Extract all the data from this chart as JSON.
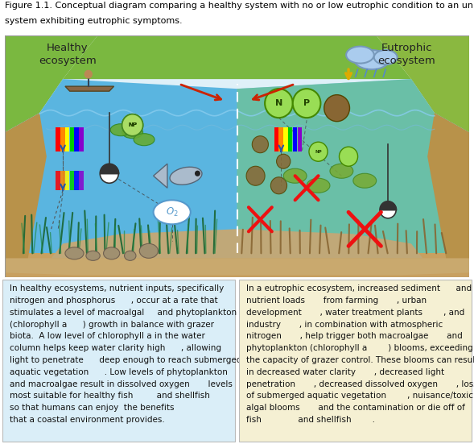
{
  "title_line1": "Figure 1.1. Conceptual diagram comparing a healthy system with no or low eutrophic condition to an unhealthy",
  "title_line2": "system exhibiting eutrophic symptoms.",
  "title_fontsize": 8.0,
  "left_label": "Healthy\necosystem",
  "right_label": "Eutrophic\necosystem",
  "label_fontsize": 9.5,
  "outer_bg": "#ffffff",
  "sky_color": "#e8f4fb",
  "land_color_left": "#7ab840",
  "land_color_right": "#8ab84a",
  "water_color": "#5ab5e0",
  "water_color_right": "#7ec87a",
  "sandy_bottom": "#c9a96e",
  "shore_brown": "#b8924a",
  "text_left_bg": "#daeef8",
  "text_right_bg": "#f5f0d3",
  "text_border": "#bbbbbb",
  "divider_color": "#ffffff",
  "fig_width": 5.89,
  "fig_height": 5.51,
  "dpi": 100,
  "left_text_lines": [
    "In healthy ecosystems, nutrient inputs, specifically",
    "nitrogen and phosphorus      , occur at a rate that",
    "stimulates a level of macroalgal     and phytoplankton",
    "(chlorophyll a      ) growth in balance with grazer",
    "biota.  A low level of chlorophyll a in the water",
    "column helps keep water clarity high      , allowing",
    "light to penetrate      deep enough to reach submerged",
    "aquatic vegetation      . Low levels of phytoplankton",
    "and macroalgae result in dissolved oxygen       levels",
    "most suitable for healthy fish         and shellfish",
    "so that humans can enjoy  the benefits",
    "that a coastal environment provides."
  ],
  "right_text_lines": [
    "In a eutrophic ecosystem, increased sediment      and",
    "nutrient loads       from farming       , urban",
    "development       , water treatment plants        , and",
    "industry       , in combination with atmospheric",
    "nitrogen       , help trigger both macroalgae       and",
    "phytoplankton (chlorophyll a        ) blooms, exceeding",
    "the capacity of grazer control. These blooms can result",
    "in decreased water clarity       , decreased light",
    "penetration       , decreased dissolved oxygen       , loss",
    "of submerged aquatic vegetation        , nuisance/toxic",
    "algal blooms       and the contamination or die off of",
    "fish              and shellfish        ."
  ],
  "text_fontsize": 7.5,
  "rainbow_colors": [
    "#ff0000",
    "#ff8800",
    "#ffff00",
    "#00cc00",
    "#0000ff",
    "#8800cc"
  ],
  "np_green": "#88cc44",
  "np_border": "#336600",
  "algae_left_color": "#66aa33",
  "algae_right_color": "#997722",
  "red_x_color": "#ee1111",
  "o2_bg": "#ffffff",
  "o2_border": "#5599cc",
  "o2_text": "#5599cc",
  "seagrass_left": "#226633",
  "seagrass_right": "#887733",
  "water_wave_color": "#7ac8e8"
}
